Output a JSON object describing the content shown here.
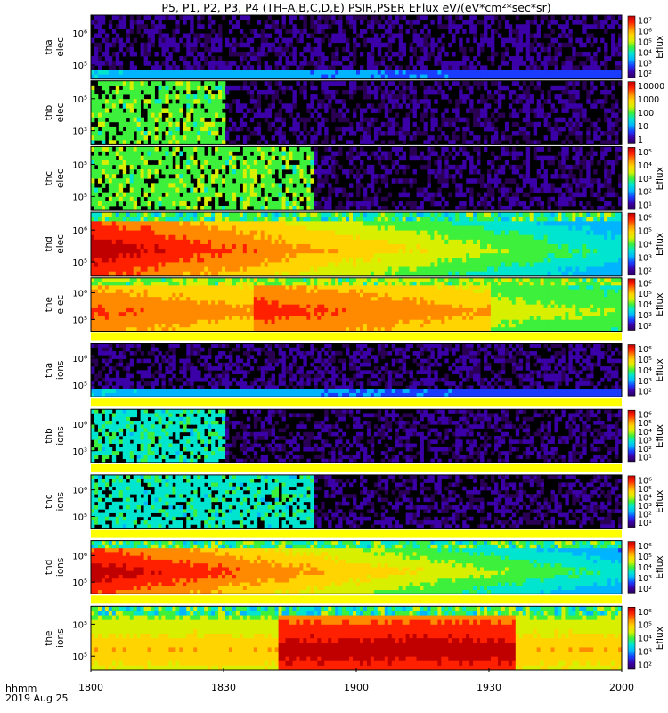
{
  "chart_data": {
    "type": "heatmap",
    "title": "P5, P1, P2, P3, P4 (TH–A,B,C,D,E) PSIR,PSER EFlux eV/(eV*cm²*sec*sr)",
    "x_ticks": [
      "1800",
      "1830",
      "1900",
      "1930",
      "2000"
    ],
    "x_range": [
      "18:00",
      "20:00"
    ],
    "footer": [
      "hhmm",
      "2019 Aug 25"
    ],
    "colormap": [
      "#2a0055",
      "#3b00a8",
      "#1a3cff",
      "#00b4ff",
      "#00e5d0",
      "#3cf03c",
      "#d8f000",
      "#ffd400",
      "#ff8a00",
      "#ff2000",
      "#c00000"
    ],
    "panels": [
      {
        "probe": "tha",
        "species": "elec",
        "ylabel": [
          "tha",
          "elec"
        ],
        "y_ticks": [
          "10⁶",
          "10⁵"
        ],
        "cb_ticks": [
          "10⁷",
          "10⁶",
          "10⁵",
          "10⁴",
          "10³",
          "10²"
        ],
        "cb_label": "Eflux",
        "active_until_min": 120,
        "regime": "sparse-low",
        "white_gap": false
      },
      {
        "probe": "thb",
        "species": "elec",
        "ylabel": [
          "thb",
          "elec"
        ],
        "y_ticks": [
          "10⁵",
          "10³"
        ],
        "cb_ticks": [
          "10000",
          "1000",
          "100",
          "10",
          "1"
        ],
        "cb_label": "",
        "active_until_min": 30,
        "regime": "noisy-green",
        "white_gap": false
      },
      {
        "probe": "thc",
        "species": "elec",
        "ylabel": [
          "thc",
          "elec"
        ],
        "y_ticks": [
          "10⁵",
          "10⁵"
        ],
        "cb_ticks": [
          "10⁵",
          "10⁴",
          "10³",
          "10²",
          "10¹"
        ],
        "cb_label": "Eflux",
        "active_until_min": 50,
        "regime": "noisy-green",
        "white_gap": false
      },
      {
        "probe": "thd",
        "species": "elec",
        "ylabel": [
          "thd",
          "elec"
        ],
        "y_ticks": [
          "10⁶",
          "10⁵"
        ],
        "cb_ticks": [
          "10⁶",
          "10⁵",
          "10⁴",
          "10³",
          "10²"
        ],
        "cb_label": "Eflux",
        "active_until_min": 120,
        "regime": "dense-red",
        "white_gap": false
      },
      {
        "probe": "the",
        "species": "elec",
        "ylabel": [
          "the",
          "elec"
        ],
        "y_ticks": [
          "10⁶",
          "10⁵"
        ],
        "cb_ticks": [
          "10⁶",
          "10⁵",
          "10⁴",
          "10³",
          "10²"
        ],
        "cb_label": "Eflux",
        "active_until_min": 120,
        "regime": "dense-red-2",
        "white_gap": true
      },
      {
        "probe": "tha",
        "species": "ions",
        "ylabel": [
          "tha",
          "ions"
        ],
        "y_ticks": [
          "10⁶",
          "10⁵"
        ],
        "cb_ticks": [
          "10⁶",
          "10⁵",
          "10⁴",
          "10³",
          "10²"
        ],
        "cb_label": "Eflux",
        "active_until_min": 120,
        "regime": "sparse-low",
        "white_gap": true
      },
      {
        "probe": "thb",
        "species": "ions",
        "ylabel": [
          "thb",
          "ions"
        ],
        "y_ticks": [
          "10⁶",
          "10³"
        ],
        "cb_ticks": [
          "10⁶",
          "10⁵",
          "10⁴",
          "10³",
          "10²",
          "10¹"
        ],
        "cb_label": "Eflux",
        "active_until_min": 30,
        "regime": "noisy-cyan",
        "white_gap": true
      },
      {
        "probe": "thc",
        "species": "ions",
        "ylabel": [
          "thc",
          "ions"
        ],
        "y_ticks": [
          "10⁶",
          "10⁵"
        ],
        "cb_ticks": [
          "10⁶",
          "10⁵",
          "10⁴",
          "10³",
          "10²",
          "10¹"
        ],
        "cb_label": "Eflux",
        "active_until_min": 50,
        "regime": "noisy-cyan",
        "white_gap": true
      },
      {
        "probe": "thd",
        "species": "ions",
        "ylabel": [
          "thd",
          "ions"
        ],
        "y_ticks": [
          "10⁶",
          "10⁵"
        ],
        "cb_ticks": [
          "10⁶",
          "10⁵",
          "10⁴",
          "10³",
          "10²"
        ],
        "cb_label": "Eflux",
        "active_until_min": 120,
        "regime": "dense-red",
        "white_gap": true
      },
      {
        "probe": "the",
        "species": "ions",
        "ylabel": [
          "the",
          "ions"
        ],
        "y_ticks": [
          "10⁵",
          "10⁵"
        ],
        "cb_ticks": [
          "10⁶",
          "10⁵",
          "10⁴",
          "10³",
          "10²"
        ],
        "cb_label": "Eflux",
        "active_until_min": 120,
        "regime": "dense-yellow",
        "white_gap": false
      }
    ]
  }
}
